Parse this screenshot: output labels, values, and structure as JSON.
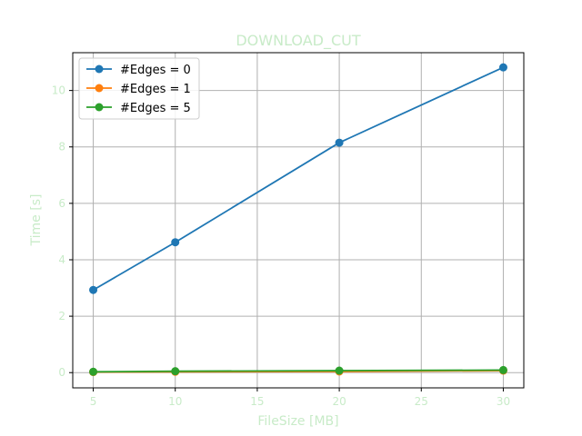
{
  "chart_data": {
    "type": "line",
    "title": "DOWNLOAD_CUT",
    "xlabel": "FileSize [MB]",
    "ylabel": "Time [s]",
    "x": [
      5,
      10,
      20,
      30
    ],
    "xlim": [
      3.75,
      31.25
    ],
    "ylim": [
      -0.54,
      11.34
    ],
    "xticks": [
      5,
      10,
      15,
      20,
      25,
      30
    ],
    "yticks": [
      0,
      2,
      4,
      6,
      8,
      10
    ],
    "grid": true,
    "legend_position": "top-left",
    "series": [
      {
        "name": "#Edges = 0",
        "color": "#1f77b4",
        "values": [
          2.93,
          4.62,
          8.15,
          10.82
        ]
      },
      {
        "name": "#Edges = 1",
        "color": "#ff7f0e",
        "values": [
          0.02,
          0.03,
          0.04,
          0.07
        ]
      },
      {
        "name": "#Edges = 5",
        "color": "#2ca02c",
        "values": [
          0.03,
          0.05,
          0.07,
          0.09
        ]
      }
    ],
    "text_color": "#c8ebc8"
  }
}
